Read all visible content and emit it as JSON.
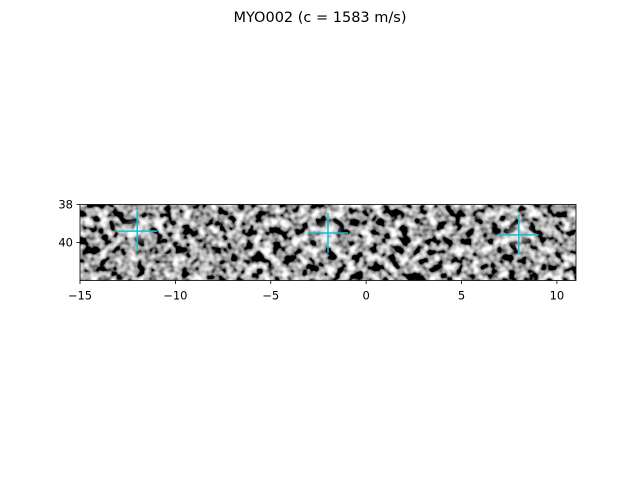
{
  "chart_data": {
    "type": "heatmap",
    "title": "MYO002 (c = 1583 m/s)",
    "xlabel": "",
    "ylabel": "",
    "xlim": [
      -15,
      11
    ],
    "ylim": [
      42,
      38
    ],
    "x_ticks": [
      -15,
      -10,
      -5,
      0,
      5,
      10
    ],
    "x_tick_labels": [
      "−15",
      "−10",
      "−5",
      "0",
      "5",
      "10"
    ],
    "y_ticks": [
      38,
      40
    ],
    "y_tick_labels": [
      "38",
      "40"
    ],
    "colormap": "gray",
    "grid": false,
    "markers": {
      "style": "plus",
      "color": "#17becf",
      "points": [
        {
          "x": -12.0,
          "y": 39.4
        },
        {
          "x": -2.0,
          "y": 39.5
        },
        {
          "x": 8.0,
          "y": 39.6
        }
      ]
    }
  }
}
